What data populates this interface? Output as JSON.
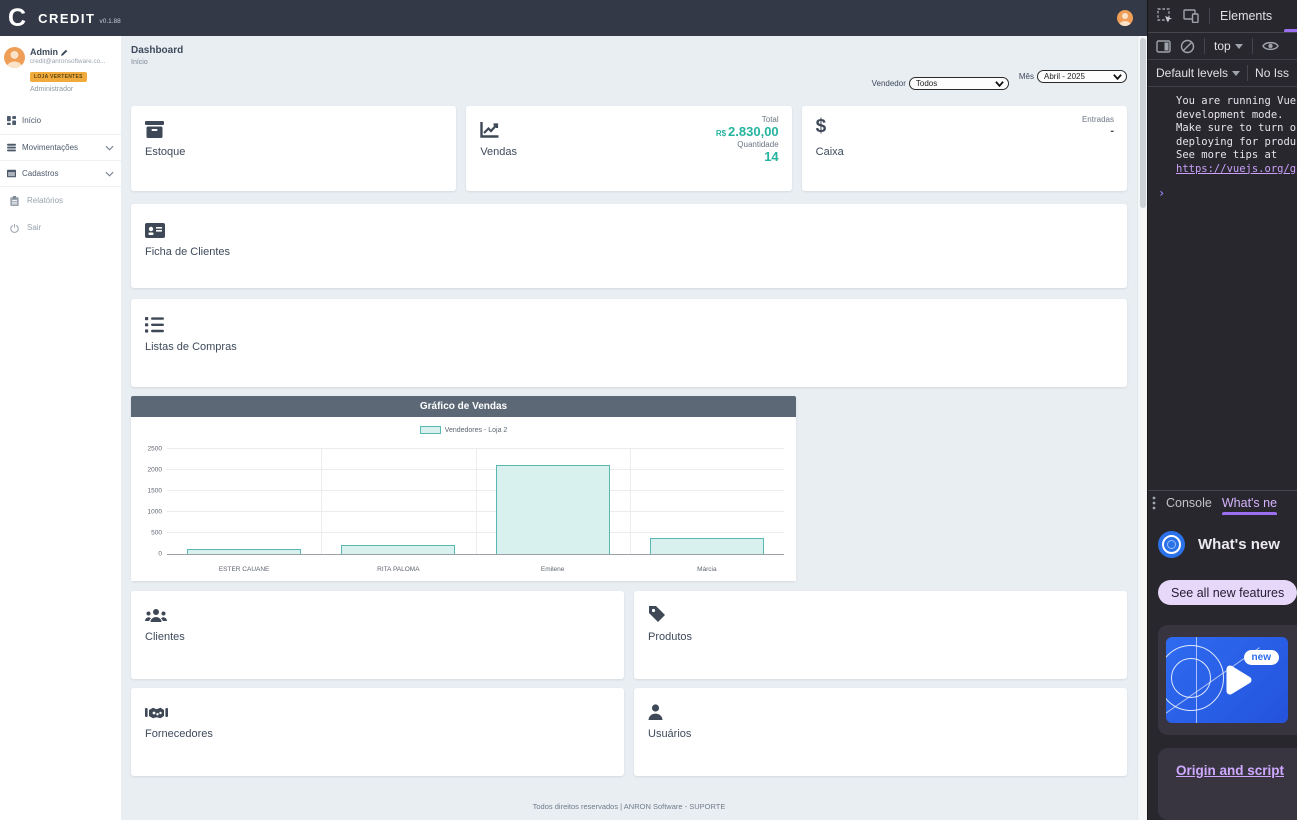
{
  "navbar": {
    "logo": "C",
    "brand": "CREDIT",
    "version": "v0.1.88"
  },
  "sidebar": {
    "user": {
      "name": "Admin",
      "email": "credit@anronsoftware.co...",
      "badge": "LOJA VERTENTES",
      "role": "Administrador"
    },
    "menu": [
      {
        "label": "Início"
      },
      {
        "label": "Movimentações"
      },
      {
        "label": "Cadastros"
      },
      {
        "label": "Relatórios"
      },
      {
        "label": "Sair"
      }
    ]
  },
  "header": {
    "title": "Dashboard",
    "breadcrumb": "Início"
  },
  "filters": {
    "vendedor_label": "Vendedor",
    "vendedor_value": "Todos",
    "mes_label": "Mês",
    "mes_value": "Abril - 2025"
  },
  "cards": {
    "estoque": {
      "label": "Estoque"
    },
    "vendas": {
      "label": "Vendas",
      "total_label": "Total",
      "total_currency": "R$",
      "total_value": "2.830,00",
      "qty_label": "Quantidade",
      "qty_value": "14"
    },
    "caixa": {
      "label": "Caixa",
      "entradas_label": "Entradas",
      "entradas_value": "-"
    },
    "ficha": {
      "label": "Ficha de Clientes"
    },
    "listas": {
      "label": "Listas de Compras"
    },
    "clientes": {
      "label": "Clientes"
    },
    "produtos": {
      "label": "Produtos"
    },
    "fornecedores": {
      "label": "Fornecedores"
    },
    "usuarios": {
      "label": "Usuários"
    }
  },
  "chart_data": {
    "type": "bar",
    "title": "Gráfico de Vendas",
    "legend": "Vendedores - Loja 2",
    "categories": [
      "ESTER CAUANE",
      "RITA PALOMA",
      "Emilene",
      "Márcia"
    ],
    "values": [
      130,
      215,
      2110,
      375
    ],
    "ylim": [
      0,
      2500
    ],
    "yticks": [
      0,
      500,
      1000,
      1500,
      2000,
      2500
    ],
    "grid": true,
    "legend_position": "top-center",
    "bar_fill": "#d8f0ee",
    "bar_border": "#58b7b1"
  },
  "footer": {
    "text": "Todos direitos reservados | ANRON Software - SUPORTE"
  },
  "devtools": {
    "tabs": {
      "elements": "Elements"
    },
    "toolbar": {
      "context": "top"
    },
    "filter_bar": {
      "levels": "Default levels",
      "issues": "No Iss"
    },
    "console": {
      "message_lines": [
        "You are running Vue",
        "development mode.",
        "Make sure to turn o",
        "deploying for produ",
        "See more tips at"
      ],
      "link": "https://vuejs.org/g",
      "prompt": "›"
    },
    "drawer": {
      "console_tab": "Console",
      "whats_new_tab": "What's ne"
    },
    "whats_new": {
      "heading": "What's new",
      "button": "See all new features",
      "badge": "new",
      "link": "Origin and script"
    },
    "accent_purple": "#9a6ff0",
    "link_purple": "#c9a0fa"
  }
}
